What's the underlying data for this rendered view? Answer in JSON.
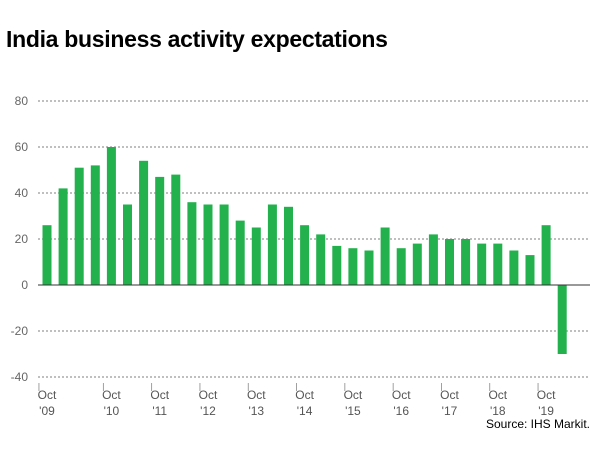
{
  "chart_data": {
    "type": "bar",
    "title": "India business activity expectations",
    "xlabel": "",
    "ylabel": "",
    "ylim": [
      -40,
      80
    ],
    "yticks": [
      80,
      60,
      40,
      20,
      0,
      -20,
      -40
    ],
    "grid": "horizontal-dashed",
    "bar_color": "#22b14c",
    "x_tick_labels": [
      {
        "month": "Oct",
        "year": "'09",
        "index": 0
      },
      {
        "month": "Oct",
        "year": "'10",
        "index": 4
      },
      {
        "month": "Oct",
        "year": "'11",
        "index": 7
      },
      {
        "month": "Oct",
        "year": "'12",
        "index": 10
      },
      {
        "month": "Oct",
        "year": "'13",
        "index": 13
      },
      {
        "month": "Oct",
        "year": "'14",
        "index": 16
      },
      {
        "month": "Oct",
        "year": "'15",
        "index": 19
      },
      {
        "month": "Oct",
        "year": "'16",
        "index": 22
      },
      {
        "month": "Oct",
        "year": "'17",
        "index": 25
      },
      {
        "month": "Oct",
        "year": "'18",
        "index": 28
      },
      {
        "month": "Oct",
        "year": "'19",
        "index": 31
      }
    ],
    "values": [
      26,
      42,
      51,
      52,
      60,
      35,
      54,
      47,
      48,
      36,
      35,
      35,
      28,
      25,
      35,
      34,
      26,
      22,
      17,
      16,
      15,
      25,
      16,
      18,
      22,
      20,
      20,
      18,
      18,
      15,
      13,
      26,
      -30
    ]
  },
  "source": "Source: IHS Markit."
}
